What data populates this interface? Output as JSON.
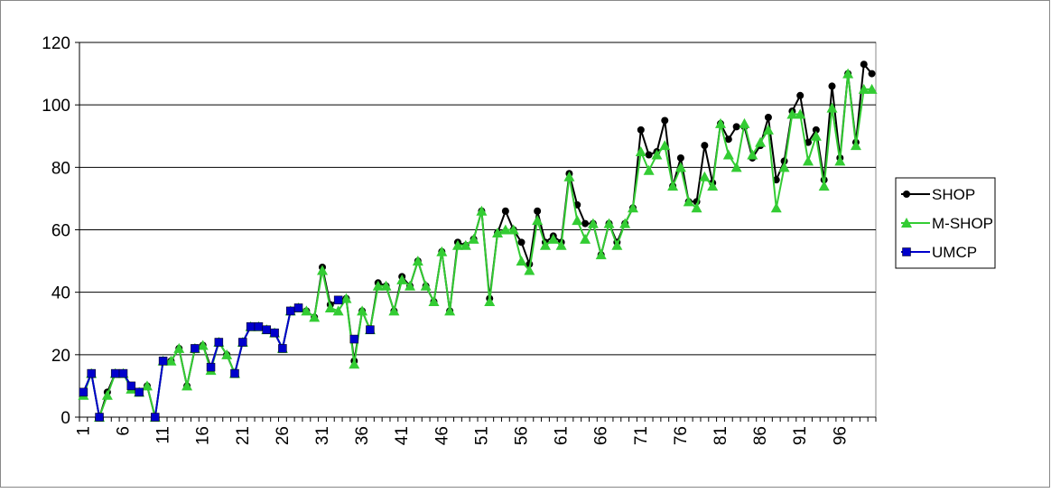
{
  "chart_data": {
    "type": "line",
    "categories": [
      1,
      null,
      null,
      null,
      null,
      6,
      null,
      null,
      null,
      null,
      11,
      null,
      null,
      null,
      null,
      16,
      null,
      null,
      null,
      null,
      21,
      null,
      null,
      null,
      null,
      26,
      null,
      null,
      null,
      null,
      31,
      null,
      null,
      null,
      null,
      36,
      null,
      null,
      null,
      null,
      41,
      null,
      null,
      null,
      null,
      46,
      null,
      null,
      null,
      null,
      51,
      null,
      null,
      null,
      null,
      56,
      null,
      null,
      null,
      null,
      61,
      null,
      null,
      null,
      null,
      66,
      null,
      null,
      null,
      null,
      71,
      null,
      null,
      null,
      null,
      76,
      null,
      null,
      null,
      null,
      81,
      null,
      null,
      null,
      null,
      86,
      null,
      null,
      null,
      null,
      91,
      null,
      null,
      null,
      null,
      96,
      null,
      null,
      null,
      null
    ],
    "ylim": [
      0,
      120
    ],
    "yticks": [
      0,
      20,
      40,
      60,
      80,
      100,
      120
    ],
    "grid": true,
    "legend": "right",
    "series": [
      {
        "name": "SHOP",
        "color": "#000000",
        "marker": "circle",
        "values": [
          8,
          14,
          0,
          8,
          14,
          14,
          10,
          8,
          10,
          0,
          18,
          18,
          22,
          10,
          22,
          23,
          16,
          24,
          20,
          14,
          24,
          29,
          29,
          28,
          27,
          22,
          34,
          35,
          34,
          32,
          48,
          36,
          37.5,
          38,
          18,
          34,
          28,
          43,
          42,
          34,
          45,
          42,
          50,
          42,
          37,
          53,
          34,
          56,
          55,
          57,
          66,
          38,
          59,
          66,
          60,
          56,
          49,
          66,
          56,
          58,
          56,
          78,
          68,
          62,
          62,
          52,
          62,
          56,
          62,
          67,
          92,
          84,
          85,
          95,
          74,
          83,
          69,
          69,
          87,
          75,
          94,
          89,
          93,
          93,
          83,
          87,
          96,
          76,
          82,
          98,
          103,
          88,
          92,
          76,
          106,
          83,
          110,
          88,
          113,
          110
        ]
      },
      {
        "name": "M-SHOP",
        "color": "#33cc33",
        "marker": "triangle",
        "values": [
          7,
          14,
          0,
          7,
          14,
          14,
          9,
          8,
          10,
          0,
          18,
          18,
          22,
          10,
          22,
          23,
          15,
          24,
          20,
          14,
          24,
          29,
          29,
          28,
          27,
          22,
          34,
          35,
          34,
          32,
          47,
          35,
          34,
          38,
          17,
          34,
          28,
          42,
          42,
          34,
          44,
          42,
          50,
          42,
          37,
          53,
          34,
          55,
          55,
          57,
          66,
          37,
          59,
          60,
          60,
          50,
          47,
          63,
          55,
          57,
          55,
          77,
          63,
          57,
          62,
          52,
          62,
          55,
          62,
          67,
          85,
          79,
          84,
          87,
          74,
          80,
          69,
          67,
          77,
          74,
          94,
          84,
          80,
          94,
          84,
          88,
          92,
          67,
          80,
          97,
          97,
          82,
          90,
          74,
          99,
          82,
          110,
          87,
          105,
          105
        ]
      },
      {
        "name": "UMCP",
        "color": "#0000cc",
        "marker": "square",
        "values": [
          8,
          14,
          0,
          null,
          14,
          14,
          10,
          8,
          null,
          0,
          18,
          null,
          null,
          null,
          22,
          null,
          16,
          24,
          null,
          14,
          24,
          29,
          29,
          28,
          27,
          22,
          34,
          35,
          null,
          null,
          null,
          null,
          37.5,
          null,
          25,
          null,
          28,
          null,
          null,
          null,
          null,
          null,
          null,
          null,
          null,
          null,
          null,
          null,
          null,
          null,
          null,
          null,
          null,
          null,
          null,
          null,
          null,
          null,
          null,
          null,
          null,
          null,
          null,
          null,
          null,
          null,
          null,
          null,
          null,
          null,
          null,
          null,
          null,
          null,
          null,
          null,
          null,
          null,
          null,
          null,
          null,
          null,
          null,
          null,
          null,
          null,
          null,
          null,
          null,
          null,
          null,
          null,
          null,
          null,
          null,
          null,
          null,
          null,
          null,
          null
        ]
      }
    ]
  }
}
